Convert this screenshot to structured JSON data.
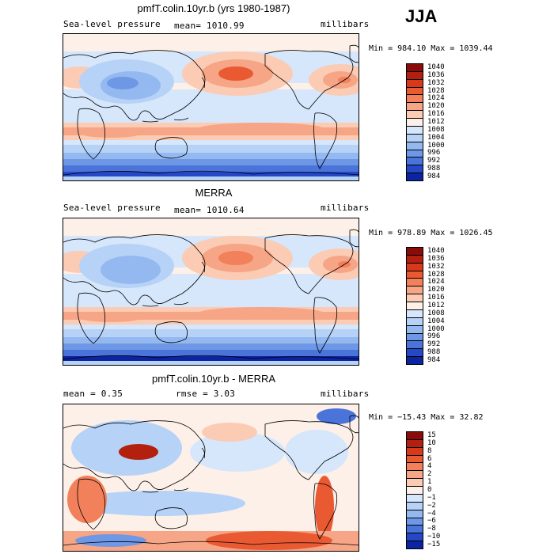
{
  "season": "JJA",
  "panels": [
    {
      "title": "pmfT.colin.10yr.b (yrs 1980-1987)",
      "left_label": "Sea-level pressure",
      "mid_label": "mean= 1010.99",
      "right_label": "millibars",
      "minmax": "Min = 984.10 Max = 1039.44"
    },
    {
      "title": "MERRA",
      "left_label": "Sea-level pressure",
      "mid_label": "mean= 1010.64",
      "right_label": "millibars",
      "minmax": "Min = 978.89 Max = 1026.45"
    },
    {
      "title": "pmfT.colin.10yr.b - MERRA",
      "left_label": "mean =    0.35",
      "mid_label": "rmse =    3.03",
      "right_label": "millibars",
      "minmax": "Min = −15.43 Max =   32.82"
    }
  ],
  "chart_data": [
    {
      "type": "heatmap",
      "title": "pmfT.colin.10yr.b (yrs 1980-1987)",
      "variable": "Sea-level pressure",
      "units": "millibars",
      "mean": 1010.99,
      "min": 984.1,
      "max": 1039.44,
      "levels": [
        "1040",
        "1036",
        "1032",
        "1028",
        "1024",
        "1020",
        "1016",
        "1012",
        "1008",
        "1004",
        "1000",
        "996",
        "992",
        "988",
        "984"
      ],
      "colors": [
        "#8b0a0a",
        "#b3200e",
        "#d8391a",
        "#ea5a32",
        "#f2805a",
        "#f6a586",
        "#fbcbb3",
        "#fdf0e8",
        "#d6e6fb",
        "#b6d2f7",
        "#94b9f0",
        "#6e98e6",
        "#4a74da",
        "#2448c6",
        "#0d24a0"
      ]
    },
    {
      "type": "heatmap",
      "title": "MERRA",
      "variable": "Sea-level pressure",
      "units": "millibars",
      "mean": 1010.64,
      "min": 978.89,
      "max": 1026.45,
      "levels": [
        "1040",
        "1036",
        "1032",
        "1028",
        "1024",
        "1020",
        "1016",
        "1012",
        "1008",
        "1004",
        "1000",
        "996",
        "992",
        "988",
        "984"
      ],
      "colors": [
        "#8b0a0a",
        "#b3200e",
        "#d8391a",
        "#ea5a32",
        "#f2805a",
        "#f6a586",
        "#fbcbb3",
        "#fdf0e8",
        "#d6e6fb",
        "#b6d2f7",
        "#94b9f0",
        "#6e98e6",
        "#4a74da",
        "#2448c6",
        "#0d24a0"
      ]
    },
    {
      "type": "heatmap",
      "title": "pmfT.colin.10yr.b - MERRA",
      "units": "millibars",
      "mean": 0.35,
      "rmse": 3.03,
      "min": -15.43,
      "max": 32.82,
      "levels": [
        "15",
        "10",
        "8",
        "6",
        "4",
        "2",
        "1",
        "0",
        "−1",
        "−2",
        "−4",
        "−6",
        "−8",
        "−10",
        "−15"
      ],
      "colors": [
        "#8b0a0a",
        "#b3200e",
        "#d8391a",
        "#ea5a32",
        "#f2805a",
        "#f6a586",
        "#fbcbb3",
        "#fdf0e8",
        "#d6e6fb",
        "#b6d2f7",
        "#94b9f0",
        "#6e98e6",
        "#4a74da",
        "#2448c6",
        "#0d24a0"
      ]
    }
  ]
}
